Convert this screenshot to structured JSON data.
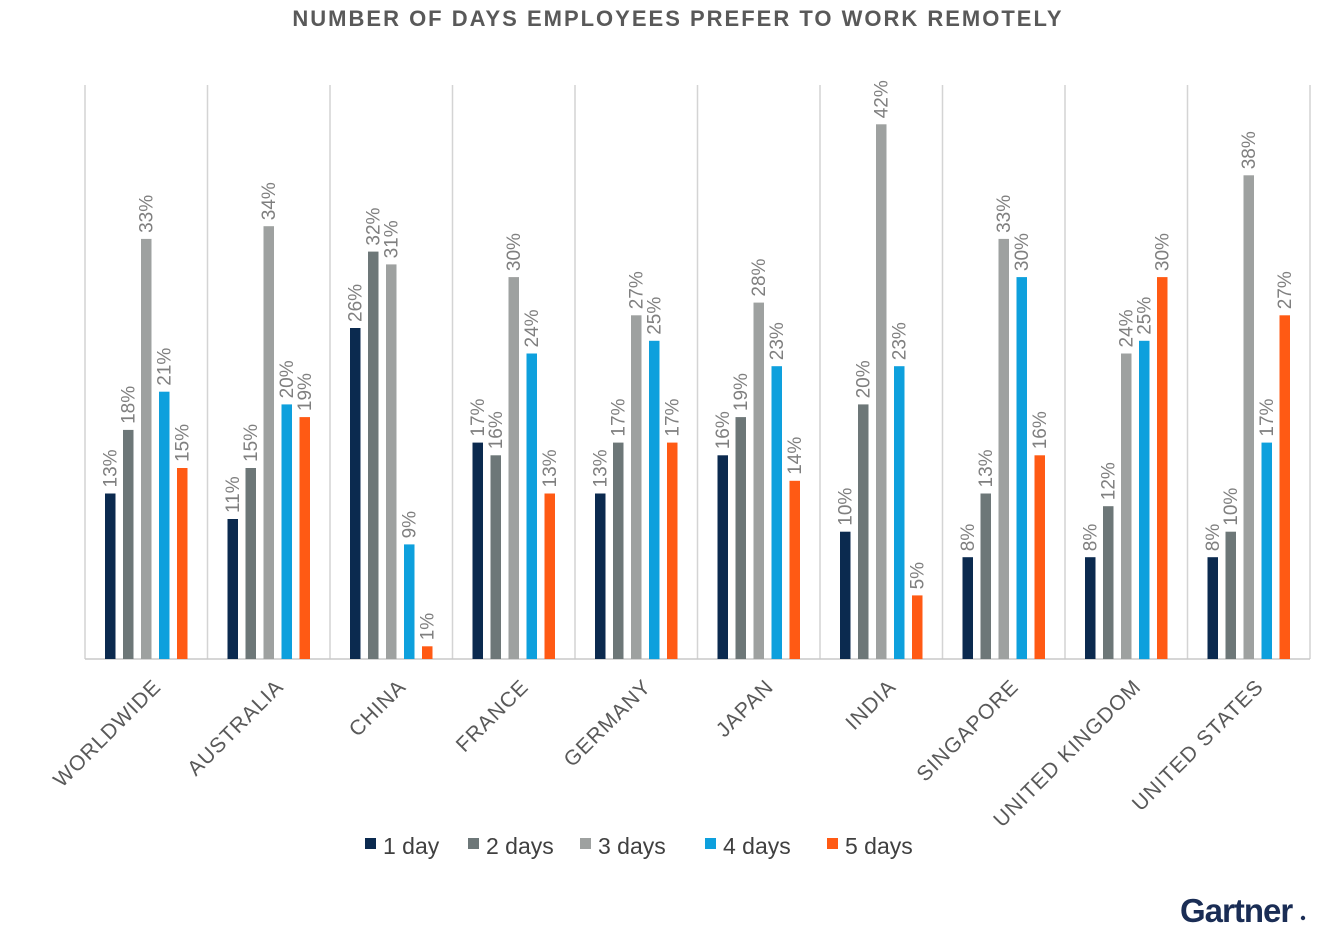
{
  "logo": {
    "text": "Gartner"
  },
  "chart_data": {
    "type": "bar",
    "title": "NUMBER OF DAYS EMPLOYEES PREFER TO WORK REMOTELY",
    "categories": [
      "WORLDWIDE",
      "AUSTRALIA",
      "CHINA",
      "FRANCE",
      "GERMANY",
      "JAPAN",
      "INDIA",
      "SINGAPORE",
      "UNITED KINGDOM",
      "UNITED STATES"
    ],
    "series": [
      {
        "name": "1 day",
        "color": "#0b2a4f",
        "values": [
          13,
          11,
          26,
          17,
          13,
          16,
          10,
          8,
          8,
          8
        ],
        "labels": [
          "13%",
          "11%",
          "26%",
          "17%",
          "13%",
          "16%",
          "10%",
          "8%",
          "8%",
          "8%"
        ]
      },
      {
        "name": "2 days",
        "color": "#6d7778",
        "values": [
          18,
          15,
          32,
          16,
          17,
          19,
          20,
          13,
          12,
          10
        ],
        "labels": [
          "18%",
          "15%",
          "32%",
          "16%",
          "17%",
          "19%",
          "20%",
          "13%",
          "12%",
          "10%"
        ]
      },
      {
        "name": "3 days",
        "color": "#9ea1a0",
        "values": [
          33,
          34,
          31,
          30,
          27,
          28,
          42,
          33,
          24,
          38
        ],
        "labels": [
          "33%",
          "34%",
          "31%",
          "30%",
          "27%",
          "28%",
          "42%",
          "33%",
          "24%",
          "38%"
        ]
      },
      {
        "name": "4 days",
        "color": "#0ea0dd",
        "values": [
          21,
          20,
          9,
          24,
          25,
          23,
          23,
          30,
          25,
          17
        ],
        "labels": [
          "21%",
          "20%",
          "9%",
          "24%",
          "25%",
          "23%",
          "23%",
          "30%",
          "25%",
          "17%"
        ]
      },
      {
        "name": "5 days",
        "color": "#ff5a14",
        "values": [
          15,
          19,
          1,
          13,
          17,
          14,
          5,
          16,
          30,
          27
        ],
        "labels": [
          "15%",
          "19%",
          "1%",
          "13%",
          "17%",
          "14%",
          "5%",
          "16%",
          "30%",
          "27%"
        ]
      }
    ],
    "ylabel": "",
    "xlabel": "",
    "grid": "vertical category separators",
    "legend": "bottom-center"
  }
}
